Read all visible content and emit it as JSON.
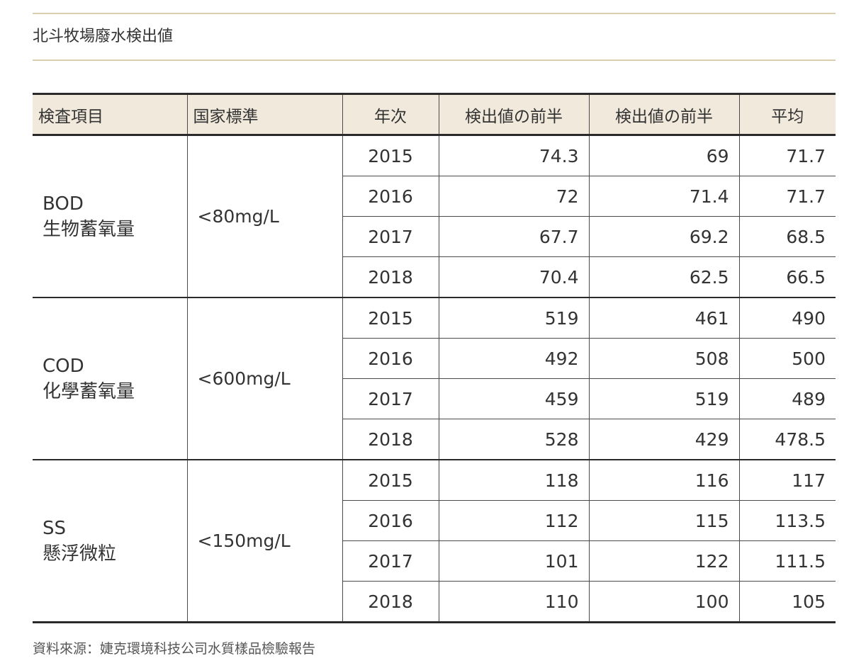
{
  "title": "北斗牧場廢水検出値",
  "headers": {
    "item": "検査項目",
    "standard": "国家標準",
    "year": "年次",
    "first_half": "検出値の前半",
    "second_half": "検出値の前半",
    "average": "平均"
  },
  "groups": [
    {
      "code": "BOD",
      "name": "生物蓄氧量",
      "standard": "<80mg/L",
      "rows": [
        {
          "year": "2015",
          "first_half": "74.3",
          "second_half": "69",
          "average": "71.7"
        },
        {
          "year": "2016",
          "first_half": "72",
          "second_half": "71.4",
          "average": "71.7"
        },
        {
          "year": "2017",
          "first_half": "67.7",
          "second_half": "69.2",
          "average": "68.5"
        },
        {
          "year": "2018",
          "first_half": "70.4",
          "second_half": "62.5",
          "average": "66.5"
        }
      ]
    },
    {
      "code": "COD",
      "name": "化學蓄氧量",
      "standard": "<600mg/L",
      "rows": [
        {
          "year": "2015",
          "first_half": "519",
          "second_half": "461",
          "average": "490"
        },
        {
          "year": "2016",
          "first_half": "492",
          "second_half": "508",
          "average": "500"
        },
        {
          "year": "2017",
          "first_half": "459",
          "second_half": "519",
          "average": "489"
        },
        {
          "year": "2018",
          "first_half": "528",
          "second_half": "429",
          "average": "478.5"
        }
      ]
    },
    {
      "code": "SS",
      "name": "懸浮微粒",
      "standard": "<150mg/L",
      "rows": [
        {
          "year": "2015",
          "first_half": "118",
          "second_half": "116",
          "average": "117"
        },
        {
          "year": "2016",
          "first_half": "112",
          "second_half": "115",
          "average": "113.5"
        },
        {
          "year": "2017",
          "first_half": "101",
          "second_half": "122",
          "average": "111.5"
        },
        {
          "year": "2018",
          "first_half": "110",
          "second_half": "100",
          "average": "105"
        }
      ]
    }
  ],
  "source": "資料來源：婕克環境科技公司水質樣品檢驗報告"
}
